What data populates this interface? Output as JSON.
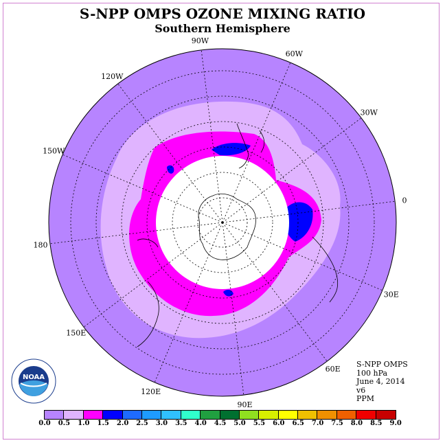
{
  "title": "S-NPP OMPS OZONE MIXING RATIO",
  "subtitle": "Southern Hemisphere",
  "info": {
    "instrument": "S-NPP OMPS",
    "level": "100 hPa",
    "date": "June 4, 2014",
    "version": "v6",
    "units": "PPM"
  },
  "logo": {
    "icon": "noaa-logo-icon",
    "text": "NOAA"
  },
  "longitude_labels": [
    "90W",
    "60W",
    "30W",
    "0",
    "30E",
    "60E",
    "90E",
    "120E",
    "150E",
    "180",
    "150W",
    "120W"
  ],
  "legend": {
    "labels": [
      "0.0",
      "0.5",
      "1.0",
      "1.5",
      "2.0",
      "2.5",
      "3.0",
      "3.5",
      "4.0",
      "4.5",
      "5.0",
      "5.5",
      "6.0",
      "6.5",
      "7.0",
      "7.5",
      "8.0",
      "8.5",
      "9.0"
    ],
    "colors": [
      "#b784ff",
      "#e0b4ff",
      "#ff00ff",
      "#0000ff",
      "#1e6bff",
      "#1e9bff",
      "#30c0ff",
      "#30ffcc",
      "#20a040",
      "#007030",
      "#90e020",
      "#d8f000",
      "#ffff00",
      "#f0c000",
      "#f09000",
      "#f06000",
      "#f00000",
      "#c80000",
      "#8c5030"
    ]
  },
  "map_colors": {
    "background_band": "#b784ff",
    "light_band": "#e0b4ff",
    "magenta_band": "#ff00ff",
    "blue_patch": "#0000ff",
    "polar_hole": "#ffffff"
  }
}
